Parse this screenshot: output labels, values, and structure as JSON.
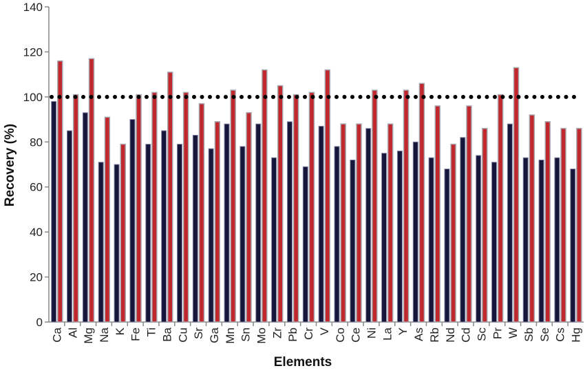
{
  "chart_data": {
    "type": "bar",
    "title": "",
    "xlabel": "Elements",
    "ylabel": "Recovery (%)",
    "ylim": [
      0,
      140
    ],
    "yticks": [
      "0",
      "20",
      "40",
      "60",
      "80",
      "100",
      "120",
      "140"
    ],
    "grid": false,
    "reference_line": {
      "y": 100,
      "style": "dotted",
      "color": "#000000"
    },
    "categories": [
      "Ca",
      "Al",
      "Mg",
      "Na",
      "K",
      "Fe",
      "Ti",
      "Ba",
      "Cu",
      "Sr",
      "Ga",
      "Mn",
      "Sn",
      "Mo",
      "Zr",
      "Pb",
      "Cr",
      "V",
      "Co",
      "Ce",
      "Ni",
      "La",
      "Y",
      "As",
      "Rb",
      "Nd",
      "Cd",
      "Sc",
      "Pr",
      "W",
      "Sb",
      "Se",
      "Cs",
      "Hg"
    ],
    "series": [
      {
        "color": "#15163a",
        "values": [
          98,
          85,
          93,
          71,
          70,
          90,
          79,
          85,
          79,
          83,
          77,
          88,
          78,
          88,
          73,
          89,
          69,
          87,
          78,
          72,
          86,
          75,
          76,
          80,
          73,
          68,
          82,
          74,
          71,
          88,
          73,
          72,
          73,
          68
        ]
      },
      {
        "color": "#c1282e",
        "values": [
          116,
          101,
          117,
          91,
          79,
          101,
          102,
          111,
          102,
          97,
          89,
          103,
          93,
          112,
          105,
          101,
          102,
          112,
          88,
          88,
          103,
          88,
          103,
          106,
          96,
          79,
          96,
          86,
          101,
          113,
          92,
          89,
          86,
          86
        ]
      }
    ]
  }
}
